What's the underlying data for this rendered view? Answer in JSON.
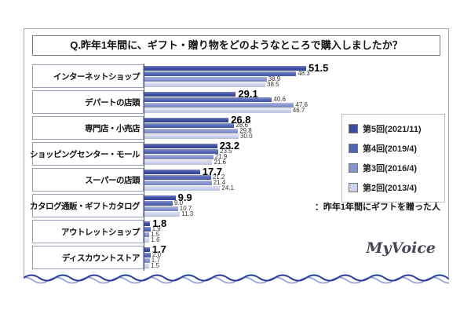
{
  "title": "Q.昨年1年間に、ギフト・贈り物をどのようなところで購入しましたか？",
  "note": "：昨年1年間にギフトを贈った人",
  "logo": "MyVoice",
  "chart_data": {
    "type": "bar",
    "orientation": "horizontal",
    "title": "Q.昨年1年間に、ギフト・贈り物をどのようなところで購入しましたか？",
    "xlabel": "",
    "ylabel": "",
    "xlim": [
      0,
      60
    ],
    "legend_position": "right",
    "value_labels": true,
    "categories": [
      "インターネットショップ",
      "デパートの店頭",
      "専門店・小売店",
      "ショッピングセンター・モール",
      "スーパーの店頭",
      "カタログ通販・ギフトカタログ",
      "アウトレットショップ",
      "ディスカウントストア"
    ],
    "series": [
      {
        "name": "第5回(2021/11)",
        "color": "#3b4ba0",
        "values": [
          51.5,
          29.1,
          26.8,
          23.2,
          17.7,
          9.9,
          1.8,
          1.7
        ]
      },
      {
        "name": "第4回(2019/4)",
        "color": "#5265b5",
        "values": [
          48.3,
          40.6,
          28.6,
          23.5,
          21.2,
          9.0,
          1.9,
          2.0
        ]
      },
      {
        "name": "第3回(2016/4)",
        "color": "#8795cf",
        "values": [
          38.9,
          47.6,
          29.8,
          21.9,
          21.4,
          10.7,
          1.5,
          1.7
        ]
      },
      {
        "name": "第2回(2013/4)",
        "color": "#cdd3ec",
        "values": [
          38.5,
          46.7,
          30.0,
          21.6,
          24.1,
          11.3,
          1.6,
          1.5
        ]
      }
    ]
  }
}
